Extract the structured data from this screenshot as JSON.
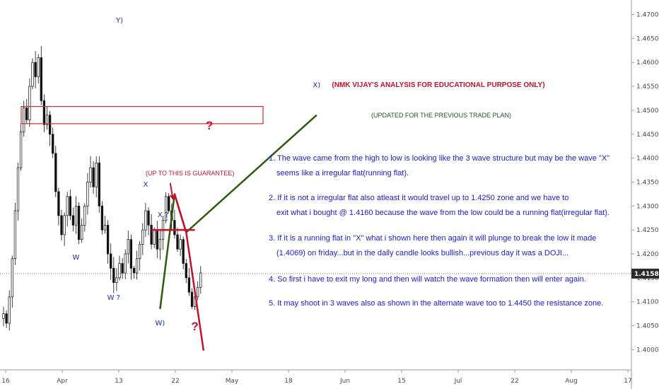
{
  "chart_data": {
    "type": "candlestick",
    "y_ticks": [
      "1.47000",
      "1.46500",
      "1.46000",
      "1.45500",
      "1.45000",
      "1.44500",
      "1.44000",
      "1.43500",
      "1.43000",
      "1.42500",
      "1.42000",
      "1.41500",
      "1.41000",
      "1.40500",
      "1.40000"
    ],
    "x_ticks": [
      "16",
      "Apr",
      "13",
      "22",
      "May",
      "18",
      "Jun",
      "15",
      "Jul",
      "22",
      "Aug",
      "17"
    ],
    "ylim": [
      1.3965,
      1.4723
    ],
    "last_price": "1.41588",
    "price_series": [
      1.4075,
      1.4055,
      1.411,
      1.419,
      1.429,
      1.438,
      1.4455,
      1.4505,
      1.448,
      1.455,
      1.46,
      1.457,
      1.461,
      1.452,
      1.447,
      1.449,
      1.445,
      1.441,
      1.433,
      1.428,
      1.424,
      1.428,
      1.432,
      1.428,
      1.426,
      1.43,
      1.423,
      1.426,
      1.43,
      1.435,
      1.438,
      1.434,
      1.439,
      1.43,
      1.425,
      1.426,
      1.42,
      1.417,
      1.414,
      1.415,
      1.418,
      1.416,
      1.42,
      1.423,
      1.417,
      1.416,
      1.419,
      1.422,
      1.425,
      1.429,
      1.426,
      1.422,
      1.425,
      1.421,
      1.423,
      1.427,
      1.432,
      1.429,
      1.427,
      1.424,
      1.421,
      1.423,
      1.418,
      1.415,
      1.412,
      1.409,
      1.411,
      1.413,
      1.416
    ],
    "zone": {
      "top": 1.4508,
      "bottom": 1.4472
    },
    "wave_labels": [
      {
        "text": "Y)",
        "x": 40,
        "y": 1.4683
      },
      {
        "text": "X)",
        "x": 108,
        "y": 1.4548
      },
      {
        "text": "X",
        "x": 49,
        "y": 1.434
      },
      {
        "text": "X ?",
        "x": 55,
        "y": 1.4277
      },
      {
        "text": "W",
        "x": 25,
        "y": 1.4188
      },
      {
        "text": "W ?",
        "x": 38,
        "y": 1.4104
      },
      {
        "text": "W)",
        "x": 54,
        "y": 1.4051
      }
    ],
    "paths": [
      {
        "name": "green-path",
        "color": "#2e5a0e",
        "points": [
          [
            54,
            1.4085
          ],
          [
            59,
            1.4325
          ],
          [
            63,
            1.4245
          ],
          [
            108,
            1.449
          ]
        ]
      },
      {
        "name": "red-path",
        "color": "#c8102e",
        "points": [
          [
            59,
            1.4325
          ],
          [
            63,
            1.4245
          ],
          [
            69,
            1.3998
          ]
        ]
      }
    ],
    "crossbar": {
      "x1": 51,
      "x2": 66,
      "y": 1.425
    },
    "arrow": {
      "x": 58,
      "y_from": 1.4348,
      "y_to": 1.4312
    },
    "question_marks": [
      {
        "x": 71,
        "y": 1.446
      },
      {
        "x": 66,
        "y": 1.404
      }
    ]
  },
  "annotations": {
    "title": "(NMK VIJAY'S ANALYSIS FOR EDUCATIONAL PURPOSE ONLY)",
    "subtitle": "(UPDATED FOR THE PREVIOUS TRADE PLAN)",
    "guarantee": "(UP TO THIS IS GUARANTEE)",
    "question_mark": "?",
    "notes": [
      {
        "line1": "1. The wave came from the high to low is looking like the 3 wave structure but may be the wave \"X\"",
        "line2": "seems like a irregular flat(running flat)."
      },
      {
        "line1": "2. If it is not a irregular flat  also atleast it would travel up to 1.4250 zone and we have to",
        "line2": "exit what i bought @ 1.4160 because the wave from the low could be a running flat(irregular flat)."
      },
      {
        "line1": "3. If it is a running flat in \"X\" what i shown here then again it will plunge to break the low it made",
        "line2": "(1.4069) on friday...but in the daily candle looks bullish...previous day it was a DOJI..."
      },
      {
        "line1": "4. So first i have to exit my long and then will watch the wave formation then will enter again.",
        "line2": ""
      },
      {
        "line1": "5. It may shoot in 3 waves also as shown in the alternate wave too to 1.4450 the resistance zone.",
        "line2": ""
      }
    ]
  },
  "colors": {
    "candle": "#111111",
    "zone_border": "#d42b2b",
    "green_path": "#2e5a0e",
    "red_path": "#c8102e",
    "price_tag_bg": "#2a2a2a",
    "axis_line": "#9a9a9a"
  }
}
